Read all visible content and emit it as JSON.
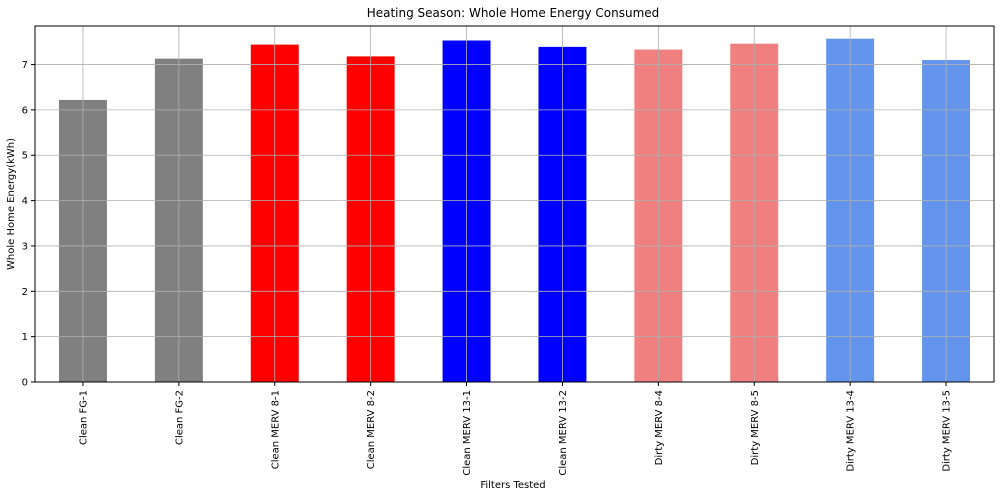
{
  "chart_data": {
    "type": "bar",
    "title": "Heating Season: Whole Home Energy Consumed",
    "xlabel": "Filters Tested",
    "ylabel": "Whole Home Energy(kWh)",
    "categories": [
      "Clean FG-1",
      "Clean FG-2",
      "Clean MERV 8-1",
      "Clean MERV 8-2",
      "Clean MERV 13-1",
      "Clean MERV 13-2",
      "Dirty MERV 8-4",
      "Dirty MERV 8-5",
      "Dirty MERV 13-4",
      "Dirty MERV 13-5"
    ],
    "values": [
      6.22,
      7.13,
      7.44,
      7.18,
      7.53,
      7.39,
      7.33,
      7.46,
      7.57,
      7.1
    ],
    "colors": [
      "#808080",
      "#808080",
      "#ff0000",
      "#ff0000",
      "#0000ff",
      "#0000ff",
      "#f08080",
      "#f08080",
      "#6495ed",
      "#6495ed"
    ],
    "ylim": [
      0,
      7.85
    ],
    "yticks": [
      0,
      1,
      2,
      3,
      4,
      5,
      6,
      7
    ],
    "grid": true,
    "legend": "none"
  }
}
